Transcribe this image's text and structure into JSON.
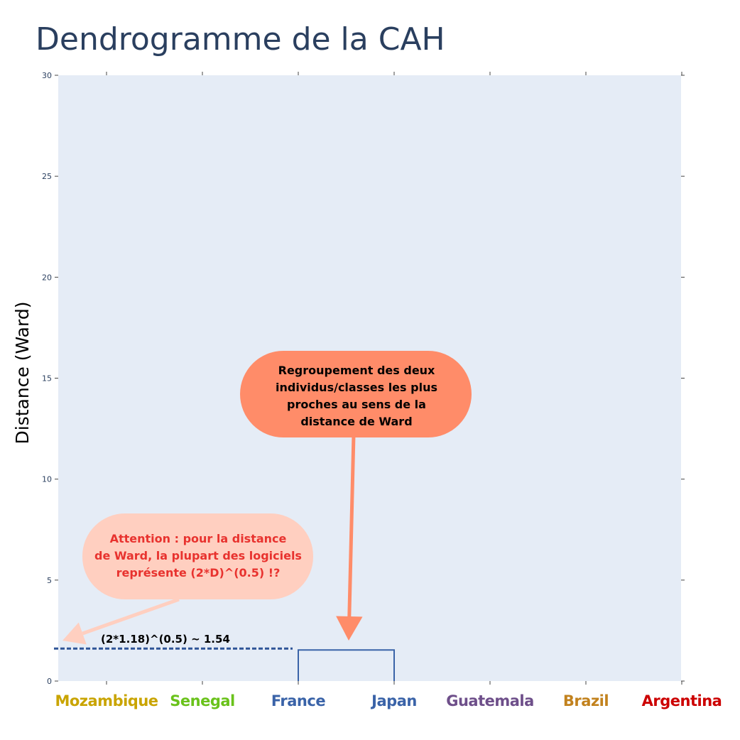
{
  "chart_data": {
    "type": "dendrogram",
    "title": "Dendrogramme de la CAH",
    "ylabel": "Distance (Ward)",
    "xlabel": "",
    "ylim": [
      0,
      30
    ],
    "yticks": [
      0,
      5,
      10,
      15,
      20,
      25,
      30
    ],
    "leaves": [
      {
        "label": "Mozambique",
        "color": "#c9a400"
      },
      {
        "label": "Senegal",
        "color": "#6ac21b"
      },
      {
        "label": "France",
        "color": "#3a63a8"
      },
      {
        "label": "Japan",
        "color": "#3a63a8"
      },
      {
        "label": "Guatemala",
        "color": "#6e4f8a"
      },
      {
        "label": "Brazil",
        "color": "#c2821e"
      },
      {
        "label": "Argentina",
        "color": "#cc0000"
      }
    ],
    "merges": [
      {
        "left": "France",
        "right": "Japan",
        "height": 1.54,
        "color": "#3a63a8"
      }
    ],
    "reference_line": {
      "y": 1.54,
      "label": "(2*1.18)^(0.5) ~ 1.54",
      "color": "#2f5597"
    },
    "annotations": [
      {
        "lines": [
          "Regroupement des deux",
          "individus/classes les plus",
          "proches au sens de la",
          "distance de Ward"
        ],
        "fill": "#ff8c69",
        "text_color": "#000000"
      },
      {
        "lines": [
          "Attention : pour la distance",
          "de Ward, la plupart des logiciels",
          "représente (2*D)^(0.5) !?"
        ],
        "fill": "#ffcfc0",
        "text_color": "#e8322e"
      }
    ],
    "grid": false,
    "background": "#e5ecf6"
  }
}
